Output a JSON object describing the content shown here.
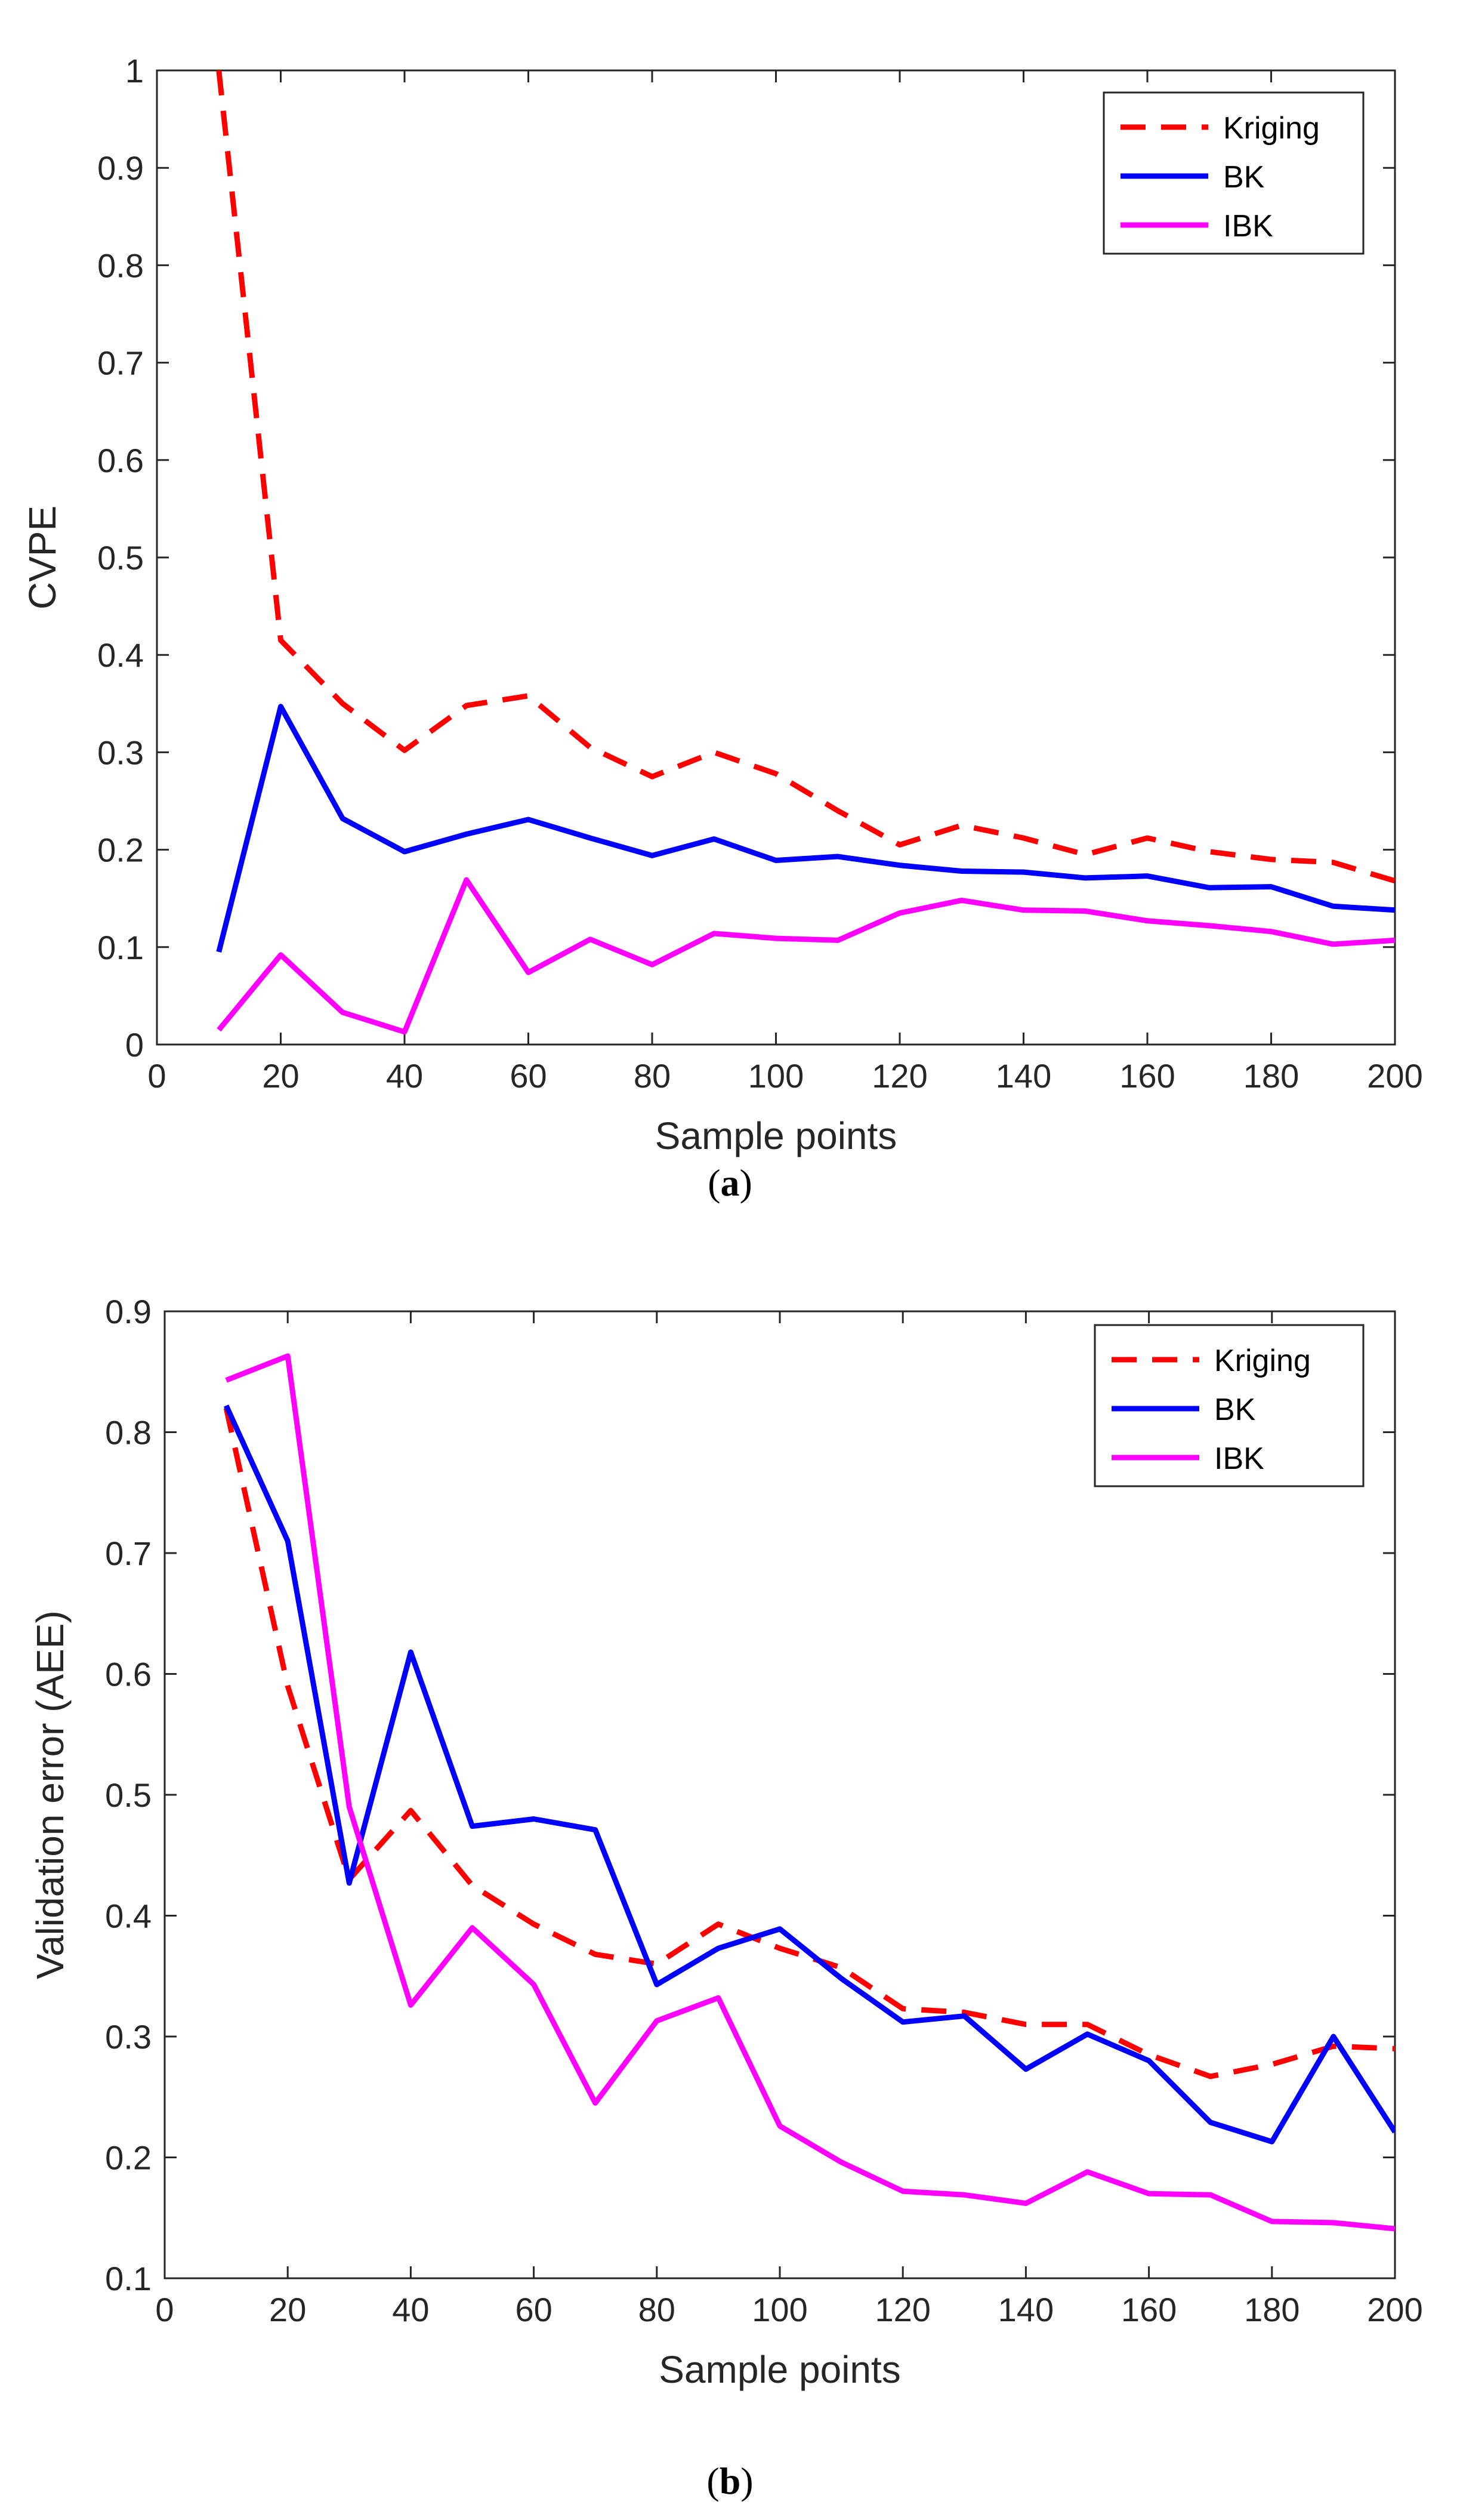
{
  "chart_data": [
    {
      "id": "a",
      "type": "line",
      "caption_letter": "a",
      "xlabel": "Sample points",
      "ylabel": "CVPE",
      "xlim": [
        0,
        200
      ],
      "ylim": [
        0,
        1
      ],
      "xticks": [
        0,
        20,
        40,
        60,
        80,
        100,
        120,
        140,
        160,
        180,
        200
      ],
      "yticks": [
        0,
        0.1,
        0.2,
        0.3,
        0.4,
        0.5,
        0.6,
        0.7,
        0.8,
        0.9,
        1
      ],
      "ytick_labels": [
        "0",
        "0.1",
        "0.2",
        "0.3",
        "0.4",
        "0.5",
        "0.6",
        "0.7",
        "0.8",
        "0.9",
        "1"
      ],
      "legend_position": "top-right",
      "x": [
        10,
        20,
        30,
        40,
        50,
        60,
        70,
        80,
        90,
        100,
        110,
        120,
        130,
        140,
        150,
        160,
        170,
        180,
        190,
        200
      ],
      "series": [
        {
          "name": "Kriging",
          "color": "#ff0000",
          "dash": true,
          "values": [
            1.0,
            0.415,
            0.35,
            0.302,
            0.348,
            0.358,
            0.305,
            0.275,
            0.3,
            0.278,
            0.24,
            0.205,
            0.225,
            0.212,
            0.195,
            0.212,
            0.198,
            0.19,
            0.187,
            0.168
          ]
        },
        {
          "name": "BK",
          "color": "#0000ff",
          "dash": false,
          "values": [
            0.095,
            0.347,
            0.232,
            0.198,
            0.216,
            0.231,
            0.212,
            0.194,
            0.211,
            0.189,
            0.193,
            0.184,
            0.178,
            0.177,
            0.171,
            0.173,
            0.161,
            0.162,
            0.142,
            0.138
          ]
        },
        {
          "name": "IBK",
          "color": "#ff00ff",
          "dash": false,
          "values": [
            0.015,
            0.092,
            0.033,
            0.013,
            0.169,
            0.074,
            0.108,
            0.082,
            0.114,
            0.109,
            0.107,
            0.135,
            0.148,
            0.138,
            0.137,
            0.127,
            0.122,
            0.116,
            0.103,
            0.107
          ]
        }
      ]
    },
    {
      "id": "b",
      "type": "line",
      "caption_letter": "b",
      "xlabel": "Sample points",
      "ylabel": "Validation error (AEE)",
      "xlim": [
        0,
        200
      ],
      "ylim": [
        0.1,
        0.9
      ],
      "xticks": [
        0,
        20,
        40,
        60,
        80,
        100,
        120,
        140,
        160,
        180,
        200
      ],
      "yticks": [
        0.1,
        0.2,
        0.3,
        0.4,
        0.5,
        0.6,
        0.7,
        0.8,
        0.9
      ],
      "ytick_labels": [
        "0.1",
        "0.2",
        "0.3",
        "0.4",
        "0.5",
        "0.6",
        "0.7",
        "0.8",
        "0.9"
      ],
      "legend_position": "top-right",
      "x": [
        10,
        20,
        30,
        40,
        50,
        60,
        70,
        80,
        90,
        100,
        110,
        120,
        130,
        140,
        150,
        160,
        170,
        180,
        190,
        200
      ],
      "series": [
        {
          "name": "Kriging",
          "color": "#ff0000",
          "dash": true,
          "values": [
            0.82,
            0.59,
            0.43,
            0.487,
            0.425,
            0.393,
            0.368,
            0.36,
            0.393,
            0.373,
            0.357,
            0.323,
            0.32,
            0.31,
            0.31,
            0.285,
            0.267,
            0.277,
            0.292,
            0.29
          ]
        },
        {
          "name": "BK",
          "color": "#0000ff",
          "dash": false,
          "values": [
            0.822,
            0.71,
            0.427,
            0.618,
            0.474,
            0.48,
            0.471,
            0.343,
            0.373,
            0.389,
            0.348,
            0.312,
            0.317,
            0.273,
            0.302,
            0.28,
            0.229,
            0.213,
            0.3,
            0.221
          ]
        },
        {
          "name": "IBK",
          "color": "#ff00ff",
          "dash": false,
          "values": [
            0.843,
            0.863,
            0.49,
            0.326,
            0.39,
            0.343,
            0.245,
            0.313,
            0.332,
            0.226,
            0.196,
            0.172,
            0.169,
            0.162,
            0.188,
            0.17,
            0.169,
            0.147,
            0.146,
            0.141
          ]
        }
      ]
    }
  ]
}
